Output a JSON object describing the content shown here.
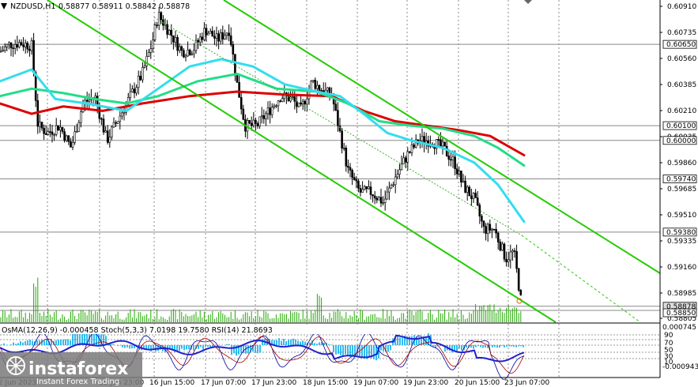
{
  "header": {
    "symbol": "NZDUSD,H1",
    "ohlc": "0.58877 0.58911 0.58842 0.58878"
  },
  "price_axis": {
    "ticks": [
      "0.60910",
      "0.60735",
      "0.60560",
      "0.60385",
      "0.60210",
      "0.60035",
      "0.59860",
      "0.59685",
      "0.59510",
      "0.59335",
      "0.59160",
      "0.58985",
      "0.58805"
    ],
    "levels": [
      {
        "label": "0.60650",
        "value": 0.6065
      },
      {
        "label": "0.60100",
        "value": 0.601
      },
      {
        "label": "0.60000",
        "value": 0.6
      },
      {
        "label": "0.59740",
        "value": 0.5974
      },
      {
        "label": "0.59380",
        "value": 0.5938
      },
      {
        "label": "0.58878",
        "value": 0.58878
      },
      {
        "label": "0.58850",
        "value": 0.5885
      }
    ]
  },
  "time_axis": {
    "labels": [
      "12 Jun 2023",
      "16 Jun 15:00",
      "17 Jun 07:00",
      "17 Jun 23:00",
      "18 Jun 15:00",
      "19 Jun 07:00",
      "19 Jun 23:00",
      "20 Jun 15:00",
      "23 Jun 07:00"
    ],
    "partial_labels": [
      "15 Jun 23:00"
    ]
  },
  "indicator": {
    "label": "OsMA(12,26,9) -0.000458  Stoch(5,3,3) 7.0198 19.7580  RSI(14) 21.8693",
    "axis_ticks": [
      "0.000745",
      "70",
      "50",
      "30",
      "-0.000943"
    ],
    "axis_extra": [
      "90",
      "10"
    ]
  },
  "watermark": {
    "brand": "instaforex",
    "tagline": "Instant Forex Trading"
  },
  "colors": {
    "channel": "#22cc00",
    "ma_red": "#dd0000",
    "ma_green": "#22dd88",
    "ma_cyan": "#33ddee",
    "candle": "#000000",
    "osma": "#33bbee",
    "stoch_main": "#000099",
    "stoch_signal": "#aa0000",
    "rsi": "#2222cc"
  },
  "chart_data": {
    "type": "candlestick",
    "x_range": [
      "12 Jun 2023",
      "23 Jun 07:00"
    ],
    "ylim": [
      0.5877,
      0.6095
    ],
    "price_anchors": [
      [
        0,
        0.606
      ],
      [
        12,
        0.6065
      ],
      [
        25,
        0.6066
      ],
      [
        40,
        0.6064
      ],
      [
        48,
        0.601
      ],
      [
        60,
        0.6005
      ],
      [
        75,
        0.601
      ],
      [
        90,
        0.5995
      ],
      [
        105,
        0.6025
      ],
      [
        120,
        0.603
      ],
      [
        135,
        0.6
      ],
      [
        150,
        0.6015
      ],
      [
        165,
        0.603
      ],
      [
        180,
        0.6045
      ],
      [
        192,
        0.6065
      ],
      [
        200,
        0.6085
      ],
      [
        215,
        0.6073
      ],
      [
        230,
        0.606
      ],
      [
        245,
        0.6062
      ],
      [
        260,
        0.6075
      ],
      [
        275,
        0.6068
      ],
      [
        290,
        0.6075
      ],
      [
        300,
        0.6038
      ],
      [
        310,
        0.601
      ],
      [
        325,
        0.601
      ],
      [
        340,
        0.602
      ],
      [
        355,
        0.603
      ],
      [
        370,
        0.6028
      ],
      [
        380,
        0.602
      ],
      [
        395,
        0.604
      ],
      [
        405,
        0.6035
      ],
      [
        420,
        0.603
      ],
      [
        432,
        0.6
      ],
      [
        440,
        0.598
      ],
      [
        455,
        0.5965
      ],
      [
        470,
        0.5965
      ],
      [
        485,
        0.5958
      ],
      [
        500,
        0.5975
      ],
      [
        515,
        0.599
      ],
      [
        530,
        0.6
      ],
      [
        545,
        0.6
      ],
      [
        560,
        0.5995
      ],
      [
        575,
        0.5985
      ],
      [
        585,
        0.597
      ],
      [
        600,
        0.596
      ],
      [
        612,
        0.594
      ],
      [
        625,
        0.594
      ],
      [
        640,
        0.592
      ],
      [
        650,
        0.5925
      ],
      [
        660,
        0.5888
      ]
    ],
    "moving_averages": [
      {
        "name": "red",
        "points": [
          [
            0,
            0.6025
          ],
          [
            40,
            0.6018
          ],
          [
            80,
            0.6023
          ],
          [
            130,
            0.602
          ],
          [
            180,
            0.6025
          ],
          [
            240,
            0.603
          ],
          [
            300,
            0.6033
          ],
          [
            360,
            0.6031
          ],
          [
            420,
            0.603
          ],
          [
            460,
            0.602
          ],
          [
            500,
            0.6013
          ],
          [
            540,
            0.601
          ],
          [
            580,
            0.6007
          ],
          [
            620,
            0.6003
          ],
          [
            663,
            0.599
          ]
        ]
      },
      {
        "name": "green",
        "points": [
          [
            0,
            0.603
          ],
          [
            40,
            0.6035
          ],
          [
            80,
            0.6032
          ],
          [
            120,
            0.6028
          ],
          [
            160,
            0.6025
          ],
          [
            200,
            0.603
          ],
          [
            250,
            0.604
          ],
          [
            300,
            0.6045
          ],
          [
            350,
            0.6035
          ],
          [
            400,
            0.6033
          ],
          [
            440,
            0.6025
          ],
          [
            480,
            0.6013
          ],
          [
            520,
            0.601
          ],
          [
            560,
            0.6008
          ],
          [
            600,
            0.6003
          ],
          [
            630,
            0.5995
          ],
          [
            663,
            0.5983
          ]
        ]
      },
      {
        "name": "cyan",
        "points": [
          [
            0,
            0.604
          ],
          [
            40,
            0.6048
          ],
          [
            70,
            0.6028
          ],
          [
            110,
            0.6025
          ],
          [
            160,
            0.602
          ],
          [
            200,
            0.6035
          ],
          [
            240,
            0.605
          ],
          [
            280,
            0.6055
          ],
          [
            320,
            0.605
          ],
          [
            360,
            0.6038
          ],
          [
            400,
            0.6033
          ],
          [
            430,
            0.603
          ],
          [
            460,
            0.6018
          ],
          [
            490,
            0.6005
          ],
          [
            520,
            0.6
          ],
          [
            560,
            0.5995
          ],
          [
            600,
            0.5985
          ],
          [
            630,
            0.597
          ],
          [
            663,
            0.5945
          ]
        ]
      }
    ],
    "indicators": [
      "OsMA(12,26,9)",
      "Stoch(5,3,3)",
      "RSI(14)"
    ]
  }
}
